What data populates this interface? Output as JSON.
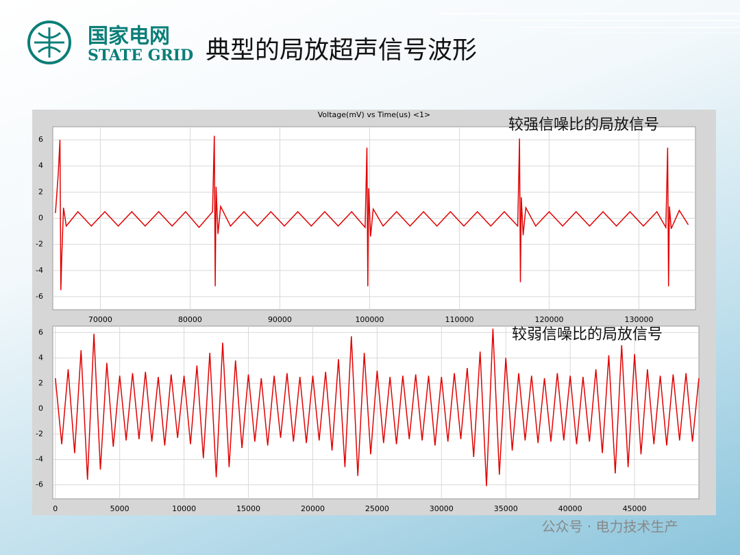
{
  "logo": {
    "name": "国家电网",
    "name_en": "STATE GRID"
  },
  "slide_title": "典型的局放超声信号波形",
  "watermark": "公众号 · 电力技术生产",
  "chart_data": [
    {
      "type": "line",
      "title": "Voltage(mV) vs Time(us) <1>",
      "annotation": "较强信噪比的局放信号",
      "x": [
        65000,
        65300,
        65500,
        65600,
        65700,
        65900,
        66200,
        67500,
        69000,
        70500,
        72000,
        73500,
        75000,
        76500,
        78000,
        79500,
        81000,
        82500,
        82700,
        82800,
        82900,
        83100,
        83400,
        84500,
        86000,
        87500,
        89000,
        90500,
        92000,
        93500,
        95000,
        96500,
        98000,
        99500,
        99700,
        99800,
        99900,
        100100,
        100400,
        101500,
        103000,
        104500,
        106000,
        107500,
        109000,
        110500,
        112000,
        113500,
        115000,
        116500,
        116700,
        116800,
        116900,
        117100,
        117400,
        118500,
        120000,
        121500,
        123000,
        124500,
        126000,
        127500,
        129000,
        130500,
        132000,
        133000,
        133200,
        133300,
        133400,
        133600,
        134500,
        135500
      ],
      "series": [
        {
          "name": "Voltage",
          "color": "#e00000",
          "values": [
            0.4,
            3.3,
            6.0,
            -5.5,
            -3.0,
            0.8,
            -0.6,
            0.5,
            -0.6,
            0.5,
            -0.6,
            0.5,
            -0.6,
            0.5,
            -0.6,
            0.5,
            -0.7,
            0.5,
            6.3,
            -5.2,
            2.4,
            -1.2,
            0.9,
            -0.6,
            0.5,
            -0.6,
            0.5,
            -0.6,
            0.5,
            -0.6,
            0.5,
            -0.6,
            0.5,
            -0.7,
            5.4,
            -5.2,
            2.3,
            -1.4,
            0.7,
            -0.6,
            0.5,
            -0.6,
            0.5,
            -0.6,
            0.5,
            -0.6,
            0.5,
            -0.6,
            0.5,
            -0.6,
            6.1,
            -4.9,
            1.6,
            -1.3,
            0.8,
            -0.6,
            0.5,
            -0.6,
            0.5,
            -0.6,
            0.5,
            -0.6,
            0.5,
            -0.6,
            0.5,
            -0.7,
            5.4,
            -5.2,
            0.9,
            -0.8,
            0.6,
            -0.5
          ]
        }
      ],
      "xlim": [
        64700,
        136300
      ],
      "ylim": [
        -7,
        7
      ],
      "xticks": [
        70000,
        80000,
        90000,
        100000,
        110000,
        120000,
        130000
      ],
      "yticks": [
        -6,
        -4,
        -2,
        0,
        2,
        4,
        6
      ],
      "grid": true
    },
    {
      "type": "line",
      "annotation": "较弱信噪比的局放信号",
      "x": [
        0,
        500,
        1000,
        1500,
        2000,
        2500,
        3000,
        3500,
        4000,
        4500,
        5000,
        5500,
        6000,
        6500,
        7000,
        7500,
        8000,
        8500,
        9000,
        9500,
        10000,
        10500,
        11000,
        11500,
        12000,
        12500,
        13000,
        13500,
        14000,
        14500,
        15000,
        15500,
        16000,
        16500,
        17000,
        17500,
        18000,
        18500,
        19000,
        19500,
        20000,
        20500,
        21000,
        21500,
        22000,
        22500,
        23000,
        23500,
        24000,
        24500,
        25000,
        25500,
        26000,
        26500,
        27000,
        27500,
        28000,
        28500,
        29000,
        29500,
        30000,
        30500,
        31000,
        31500,
        32000,
        32500,
        33000,
        33500,
        34000,
        34500,
        35000,
        35500,
        36000,
        36500,
        37000,
        37500,
        38000,
        38500,
        39000,
        39500,
        40000,
        40500,
        41000,
        41500,
        42000,
        42500,
        43000,
        43500,
        44000,
        44500,
        45000,
        45500,
        46000,
        46500,
        47000,
        47500,
        48000,
        48500,
        49000,
        49500,
        50000
      ],
      "series": [
        {
          "name": "Voltage",
          "color": "#e00000",
          "values": [
            2.4,
            -2.8,
            3.1,
            -3.5,
            4.6,
            -5.6,
            5.9,
            -4.8,
            3.6,
            -3.0,
            2.6,
            -2.5,
            2.8,
            -2.4,
            2.9,
            -2.6,
            2.5,
            -2.9,
            2.7,
            -2.3,
            2.6,
            -2.8,
            3.4,
            -3.9,
            4.4,
            -5.4,
            5.2,
            -4.6,
            3.8,
            -3.1,
            2.7,
            -2.6,
            2.4,
            -2.9,
            2.6,
            -2.3,
            2.8,
            -2.6,
            2.5,
            -2.7,
            2.6,
            -2.5,
            2.9,
            -3.3,
            3.9,
            -4.6,
            5.7,
            -5.3,
            4.4,
            -3.6,
            3.0,
            -2.7,
            2.5,
            -2.8,
            2.6,
            -2.4,
            2.7,
            -2.5,
            2.6,
            -2.9,
            2.5,
            -2.6,
            2.8,
            -2.4,
            3.2,
            -3.8,
            4.5,
            -6.1,
            6.3,
            -5.2,
            4.0,
            -3.3,
            2.8,
            -2.5,
            2.6,
            -2.7,
            2.4,
            -2.6,
            2.8,
            -2.5,
            2.6,
            -2.8,
            2.5,
            -2.6,
            3.1,
            -3.5,
            4.2,
            -5.1,
            5.0,
            -4.6,
            4.3,
            -3.6,
            3.1,
            -2.8,
            2.6,
            -2.9,
            2.7,
            -2.5,
            2.8,
            -2.6,
            2.4
          ]
        }
      ],
      "xlim": [
        -200,
        50000
      ],
      "ylim": [
        -7.1,
        6.5
      ],
      "xticks": [
        0,
        5000,
        10000,
        15000,
        20000,
        25000,
        30000,
        35000,
        40000,
        45000
      ],
      "yticks": [
        -6,
        -4,
        -2,
        0,
        2,
        4,
        6
      ],
      "grid": true
    }
  ]
}
